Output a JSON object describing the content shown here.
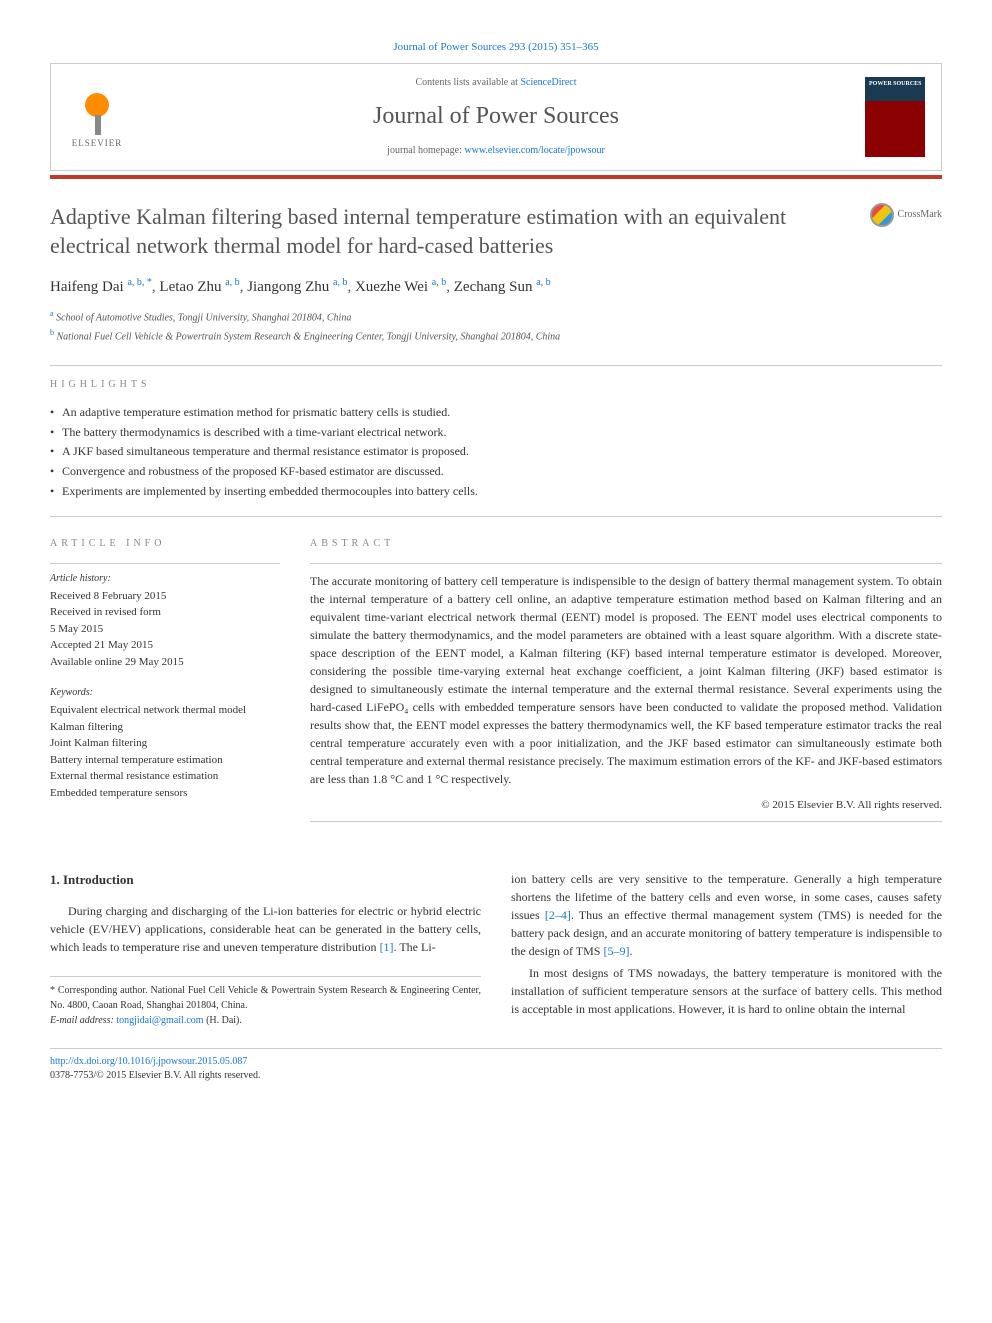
{
  "citation": "Journal of Power Sources 293 (2015) 351–365",
  "header": {
    "contents_prefix": "Contents lists available at ",
    "contents_link": "ScienceDirect",
    "journal_name": "Journal of Power Sources",
    "homepage_prefix": "journal homepage: ",
    "homepage_url": "www.elsevier.com/locate/jpowsour",
    "publisher": "ELSEVIER"
  },
  "crossmark_label": "CrossMark",
  "title": "Adaptive Kalman filtering based internal temperature estimation with an equivalent electrical network thermal model for hard-cased batteries",
  "authors": [
    {
      "name": "Haifeng Dai",
      "affil": "a, b, *"
    },
    {
      "name": "Letao Zhu",
      "affil": "a, b"
    },
    {
      "name": "Jiangong Zhu",
      "affil": "a, b"
    },
    {
      "name": "Xuezhe Wei",
      "affil": "a, b"
    },
    {
      "name": "Zechang Sun",
      "affil": "a, b"
    }
  ],
  "affiliations": [
    {
      "sup": "a",
      "text": "School of Automotive Studies, Tongji University, Shanghai 201804, China"
    },
    {
      "sup": "b",
      "text": "National Fuel Cell Vehicle & Powertrain System Research & Engineering Center, Tongji University, Shanghai 201804, China"
    }
  ],
  "highlights_heading": "HIGHLIGHTS",
  "highlights": [
    "An adaptive temperature estimation method for prismatic battery cells is studied.",
    "The battery thermodynamics is described with a time-variant electrical network.",
    "A JKF based simultaneous temperature and thermal resistance estimator is proposed.",
    "Convergence and robustness of the proposed KF-based estimator are discussed.",
    "Experiments are implemented by inserting embedded thermocouples into battery cells."
  ],
  "article_info_heading": "ARTICLE INFO",
  "abstract_heading": "ABSTRACT",
  "history": {
    "label": "Article history:",
    "lines": [
      "Received 8 February 2015",
      "Received in revised form",
      "5 May 2015",
      "Accepted 21 May 2015",
      "Available online 29 May 2015"
    ]
  },
  "keywords": {
    "label": "Keywords:",
    "items": [
      "Equivalent electrical network thermal model",
      "Kalman filtering",
      "Joint Kalman filtering",
      "Battery internal temperature estimation",
      "External thermal resistance estimation",
      "Embedded temperature sensors"
    ]
  },
  "abstract": "The accurate monitoring of battery cell temperature is indispensible to the design of battery thermal management system. To obtain the internal temperature of a battery cell online, an adaptive temperature estimation method based on Kalman filtering and an equivalent time-variant electrical network thermal (EENT) model is proposed. The EENT model uses electrical components to simulate the battery thermodynamics, and the model parameters are obtained with a least square algorithm. With a discrete state-space description of the EENT model, a Kalman filtering (KF) based internal temperature estimator is developed. Moreover, considering the possible time-varying external heat exchange coefficient, a joint Kalman filtering (JKF) based estimator is designed to simultaneously estimate the internal temperature and the external thermal resistance. Several experiments using the hard-cased LiFePO₄ cells with embedded temperature sensors have been conducted to validate the proposed method. Validation results show that, the EENT model expresses the battery thermodynamics well, the KF based temperature estimator tracks the real central temperature accurately even with a poor initialization, and the JKF based estimator can simultaneously estimate both central temperature and external thermal resistance precisely. The maximum estimation errors of the KF- and JKF-based estimators are less than 1.8 °C and 1 °C respectively.",
  "copyright": "© 2015 Elsevier B.V. All rights reserved.",
  "intro": {
    "heading": "1. Introduction",
    "para1": "During charging and discharging of the Li-ion batteries for electric or hybrid electric vehicle (EV/HEV) applications, considerable heat can be generated in the battery cells, which leads to temperature rise and uneven temperature distribution ",
    "ref1": "[1]",
    "para1_tail": ". The Li-",
    "para2_head": "ion battery cells are very sensitive to the temperature. Generally a high temperature shortens the lifetime of the battery cells and even worse, in some cases, causes safety issues ",
    "ref2": "[2–4]",
    "para2_mid": ". Thus an effective thermal management system (TMS) is needed for the battery pack design, and an accurate monitoring of battery temperature is indispensible to the design of TMS ",
    "ref3": "[5–9]",
    "para2_tail": ".",
    "para3": "In most designs of TMS nowadays, the battery temperature is monitored with the installation of sufficient temperature sensors at the surface of battery cells. This method is acceptable in most applications. However, it is hard to online obtain the internal"
  },
  "footnote": {
    "corr": "* Corresponding author. National Fuel Cell Vehicle & Powertrain System Research & Engineering Center, No. 4800, Caoan Road, Shanghai 201804, China.",
    "email_label": "E-mail address: ",
    "email": "tongjidai@gmail.com",
    "email_tail": " (H. Dai)."
  },
  "footer": {
    "doi": "http://dx.doi.org/10.1016/j.jpowsour.2015.05.087",
    "issn": "0378-7753/© 2015 Elsevier B.V. All rights reserved."
  },
  "colors": {
    "link": "#1976d2",
    "redbar": "#c0392b",
    "text": "#333333",
    "heading_gray": "#888888"
  }
}
